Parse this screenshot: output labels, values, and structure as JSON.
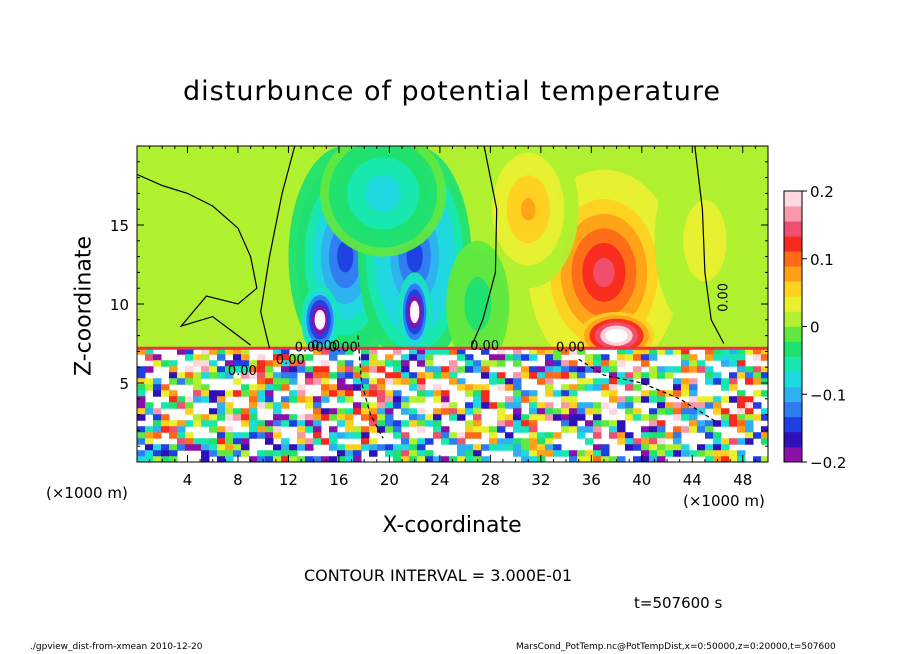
{
  "chart_data": {
    "type": "heatmap",
    "title": "disturbunce of potential temperature",
    "xlabel": "X-coordinate",
    "ylabel": "Z-coordinate",
    "x_unit_left": "(×1000 m)",
    "x_unit_right": "(×1000 m)",
    "xlim": [
      0,
      50
    ],
    "ylim": [
      0,
      20
    ],
    "x_ticks": [
      4,
      8,
      12,
      16,
      20,
      24,
      28,
      32,
      36,
      40,
      44,
      48
    ],
    "x_tick_labels": [
      "4",
      "8",
      "12",
      "16",
      "20",
      "24",
      "28",
      "32",
      "36",
      "40",
      "44",
      "48"
    ],
    "y_ticks": [
      5,
      10,
      15
    ],
    "y_tick_labels": [
      "5",
      "10",
      "15"
    ],
    "colorbar": {
      "range": [
        -0.2,
        0.2
      ],
      "ticks": [
        0.2,
        0.1,
        0,
        -0.1,
        -0.2
      ],
      "tick_labels": [
        "0.2",
        "0.1",
        "0",
        "−0.1",
        "−0.2"
      ],
      "colors": [
        "#8c10a8",
        "#3010b8",
        "#1f3fe0",
        "#2f7cf0",
        "#30b0f0",
        "#20d8e0",
        "#18e8b0",
        "#20e070",
        "#60e840",
        "#b0f030",
        "#e8f030",
        "#ffd020",
        "#ffa018",
        "#ff6a18",
        "#f82a20",
        "#f05070",
        "#f898a8",
        "#ffd8e0"
      ]
    },
    "contour_labels": [
      "0.00",
      "0.00",
      "0.00",
      "0.00",
      "0.00",
      "0.00",
      "0.00",
      "0.00"
    ],
    "blobs": [
      {
        "x": 6,
        "z": 16,
        "rx": 10,
        "rz": 6,
        "v": 0.01
      },
      {
        "x": 16.5,
        "z": 13,
        "rx": 4.5,
        "rz": 7,
        "v": -0.16
      },
      {
        "x": 22,
        "z": 13,
        "rx": 4.5,
        "rz": 7,
        "v": -0.17
      },
      {
        "x": 19.5,
        "z": 17,
        "rx": 5,
        "rz": 4,
        "v": -0.09
      },
      {
        "x": 14.5,
        "z": 9,
        "rx": 1.5,
        "rz": 2.2,
        "v": -0.3
      },
      {
        "x": 22,
        "z": 9.5,
        "rx": 1.3,
        "rz": 2.5,
        "v": -0.3
      },
      {
        "x": 37,
        "z": 12,
        "rx": 6,
        "rz": 6.5,
        "v": 0.16
      },
      {
        "x": 31,
        "z": 16,
        "rx": 4,
        "rz": 5,
        "v": 0.08
      },
      {
        "x": 38,
        "z": 8,
        "rx": 3,
        "rz": 1.5,
        "v": 0.3
      },
      {
        "x": 45,
        "z": 14,
        "rx": 4,
        "rz": 6,
        "v": 0.04
      },
      {
        "x": 27,
        "z": 10,
        "rx": 2.5,
        "rz": 4,
        "v": -0.04
      }
    ],
    "contour_interval": "CONTOUR INTERVAL = 3.000E-01",
    "time": "t=507600 s"
  },
  "footer": {
    "left": "./gpview_dist-from-xmean   2010-12-20",
    "right": "MarsCond_PotTemp.nc@PotTempDist,x=0:50000,z=0:20000,t=507600"
  }
}
